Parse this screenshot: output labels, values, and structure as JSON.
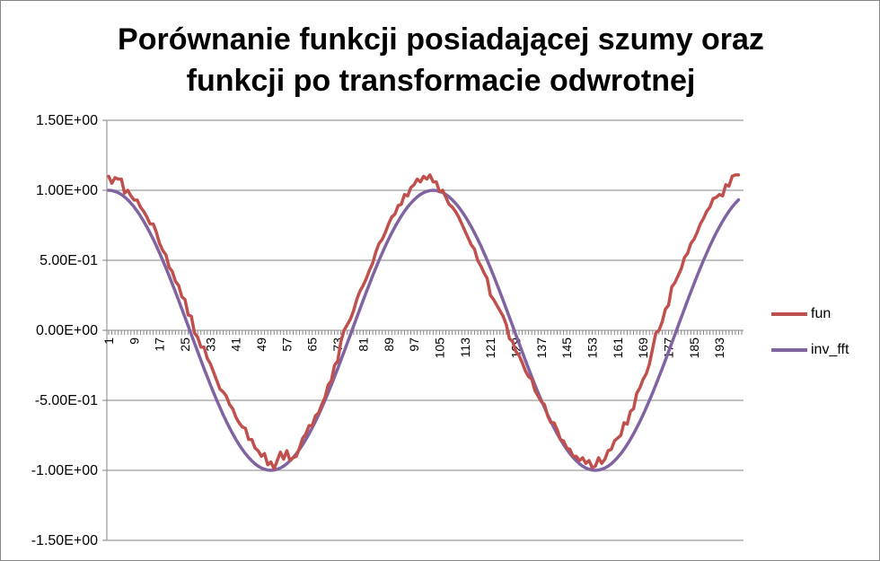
{
  "chart_data": {
    "type": "line",
    "title": "Porównanie funkcji posiadającej szumy oraz funkcji po transformacie odwrotnej",
    "title_lines": [
      "Porównanie funkcji posiadającej szumy oraz",
      "funkcji po transformacie odwrotnej"
    ],
    "xlabel": "",
    "ylabel": "",
    "x_range": [
      1,
      200
    ],
    "x_tick_labels": [
      "1",
      "9",
      "17",
      "25",
      "33",
      "41",
      "49",
      "57",
      "65",
      "73",
      "81",
      "89",
      "97",
      "105",
      "113",
      "121",
      "129",
      "137",
      "145",
      "153",
      "161",
      "169",
      "177",
      "185",
      "193"
    ],
    "ylim": [
      -1.5,
      1.5
    ],
    "y_tick_labels": [
      "1.50E+00",
      "1.00E+00",
      "5.00E-01",
      "0.00E+00",
      "-5.00E-01",
      "-1.00E+00",
      "-1.50E+00"
    ],
    "y_ticks": [
      1.5,
      1.0,
      0.5,
      0.0,
      -0.5,
      -1.0,
      -1.5
    ],
    "grid": true,
    "legend_position": "right",
    "series": [
      {
        "name": "fun",
        "color": "#C0504D",
        "values": [
          1.1,
          1.05,
          1.09,
          1.08,
          1.08,
          0.98,
          1.0,
          0.96,
          0.93,
          0.93,
          0.88,
          0.85,
          0.81,
          0.76,
          0.76,
          0.7,
          0.62,
          0.57,
          0.54,
          0.45,
          0.42,
          0.35,
          0.32,
          0.24,
          0.22,
          0.11,
          0.1,
          -0.02,
          -0.05,
          -0.12,
          -0.12,
          -0.2,
          -0.24,
          -0.3,
          -0.36,
          -0.42,
          -0.44,
          -0.47,
          -0.53,
          -0.56,
          -0.62,
          -0.66,
          -0.69,
          -0.7,
          -0.78,
          -0.78,
          -0.84,
          -0.86,
          -0.9,
          -0.88,
          -0.96,
          -0.94,
          -0.99,
          -0.93,
          -0.87,
          -0.92,
          -0.86,
          -0.93,
          -0.91,
          -0.9,
          -0.84,
          -0.77,
          -0.74,
          -0.68,
          -0.68,
          -0.61,
          -0.59,
          -0.53,
          -0.48,
          -0.39,
          -0.36,
          -0.25,
          -0.22,
          -0.08,
          0.0,
          0.04,
          0.08,
          0.14,
          0.22,
          0.28,
          0.32,
          0.37,
          0.43,
          0.48,
          0.56,
          0.62,
          0.65,
          0.7,
          0.76,
          0.81,
          0.83,
          0.89,
          0.9,
          0.97,
          0.96,
          1.02,
          1.04,
          1.08,
          1.06,
          1.1,
          1.08,
          1.11,
          1.06,
          1.06,
          0.99,
          1.0,
          0.95,
          0.9,
          0.88,
          0.85,
          0.81,
          0.76,
          0.71,
          0.66,
          0.61,
          0.58,
          0.5,
          0.46,
          0.41,
          0.37,
          0.25,
          0.22,
          0.18,
          0.14,
          0.1,
          0.04,
          -0.06,
          -0.08,
          -0.15,
          -0.18,
          -0.23,
          -0.29,
          -0.33,
          -0.35,
          -0.43,
          -0.47,
          -0.51,
          -0.53,
          -0.61,
          -0.66,
          -0.66,
          -0.71,
          -0.78,
          -0.79,
          -0.84,
          -0.85,
          -0.9,
          -0.9,
          -0.93,
          -0.91,
          -0.95,
          -0.93,
          -0.98,
          -0.97,
          -0.91,
          -0.95,
          -0.92,
          -0.86,
          -0.85,
          -0.79,
          -0.77,
          -0.75,
          -0.66,
          -0.67,
          -0.58,
          -0.56,
          -0.45,
          -0.41,
          -0.35,
          -0.31,
          -0.24,
          -0.13,
          -0.02,
          0.0,
          0.06,
          0.15,
          0.18,
          0.31,
          0.34,
          0.39,
          0.44,
          0.52,
          0.55,
          0.62,
          0.65,
          0.7,
          0.76,
          0.8,
          0.85,
          0.88,
          0.94,
          0.95,
          0.97,
          0.96,
          1.04,
          1.03,
          1.1,
          1.11,
          1.11
        ]
      },
      {
        "name": "inv_fft",
        "color": "#8064A2",
        "values": []
      }
    ]
  }
}
